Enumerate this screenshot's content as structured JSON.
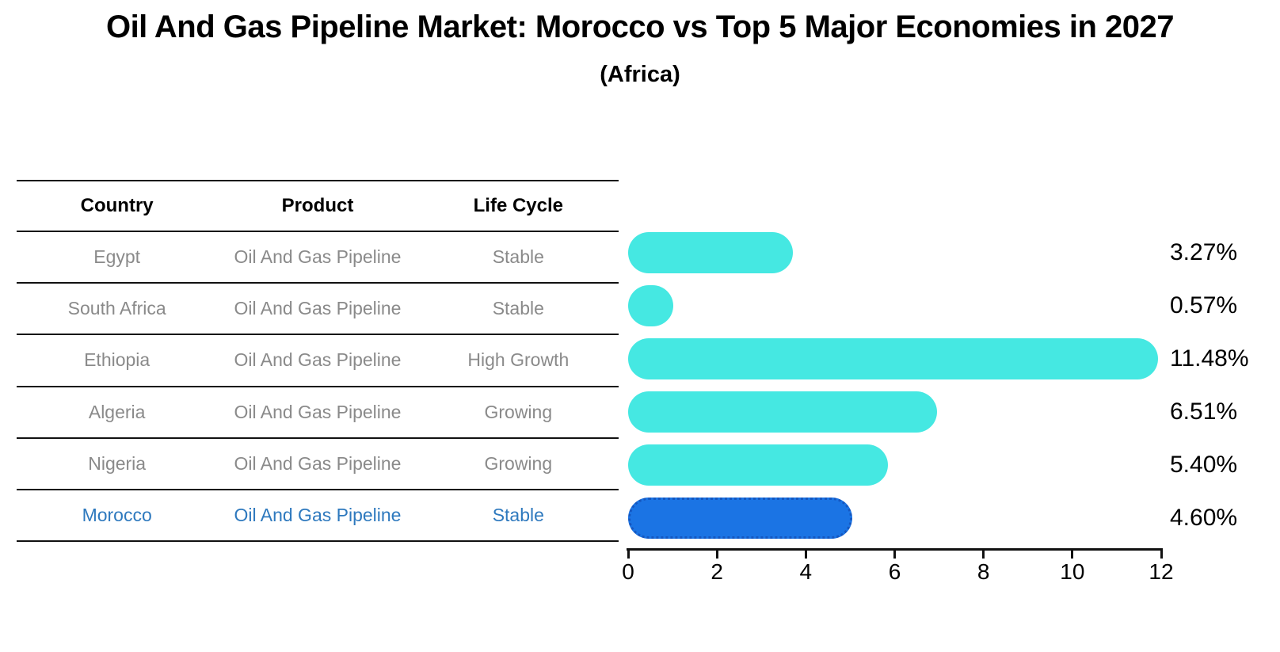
{
  "title": "Oil And Gas Pipeline Market: Morocco vs Top 5 Major Economies in 2027",
  "subtitle": "(Africa)",
  "table": {
    "headers": [
      "Country",
      "Product",
      "Life Cycle"
    ],
    "rows": [
      {
        "country": "Egypt",
        "product": "Oil And Gas Pipeline",
        "life_cycle": "Stable",
        "highlight": false
      },
      {
        "country": "South Africa",
        "product": "Oil And Gas Pipeline",
        "life_cycle": "Stable",
        "highlight": false
      },
      {
        "country": "Ethiopia",
        "product": "Oil And Gas Pipeline",
        "life_cycle": "High Growth",
        "highlight": false
      },
      {
        "country": "Algeria",
        "product": "Oil And Gas Pipeline",
        "life_cycle": "Growing",
        "highlight": false
      },
      {
        "country": "Nigeria",
        "product": "Oil And Gas Pipeline",
        "life_cycle": "Growing",
        "highlight": false
      },
      {
        "country": "Morocco",
        "product": "Oil And Gas Pipeline",
        "life_cycle": "Stable",
        "highlight": true
      }
    ]
  },
  "chart_data": {
    "type": "bar",
    "orientation": "horizontal",
    "title": "Oil And Gas Pipeline Market: Morocco vs Top 5 Major Economies in 2027 (Africa)",
    "categories": [
      "Egypt",
      "South Africa",
      "Ethiopia",
      "Algeria",
      "Nigeria",
      "Morocco"
    ],
    "values": [
      3.27,
      0.57,
      11.48,
      6.51,
      5.4,
      4.6
    ],
    "value_labels": [
      "3.27%",
      "0.57%",
      "11.48%",
      "6.51%",
      "5.40%",
      "4.60%"
    ],
    "xlim": [
      0,
      12
    ],
    "x_ticks": [
      0,
      2,
      4,
      6,
      8,
      10,
      12
    ],
    "grid": false,
    "legend": false,
    "highlight_index": 5
  },
  "colors": {
    "bar_cyan": "#45E8E2",
    "bar_blue": "#1B74E4",
    "bar_blue_edge": "#1557C0",
    "highlight_text": "#2E79BE",
    "table_text": "#8A8A8A",
    "line_black": "#111111"
  }
}
